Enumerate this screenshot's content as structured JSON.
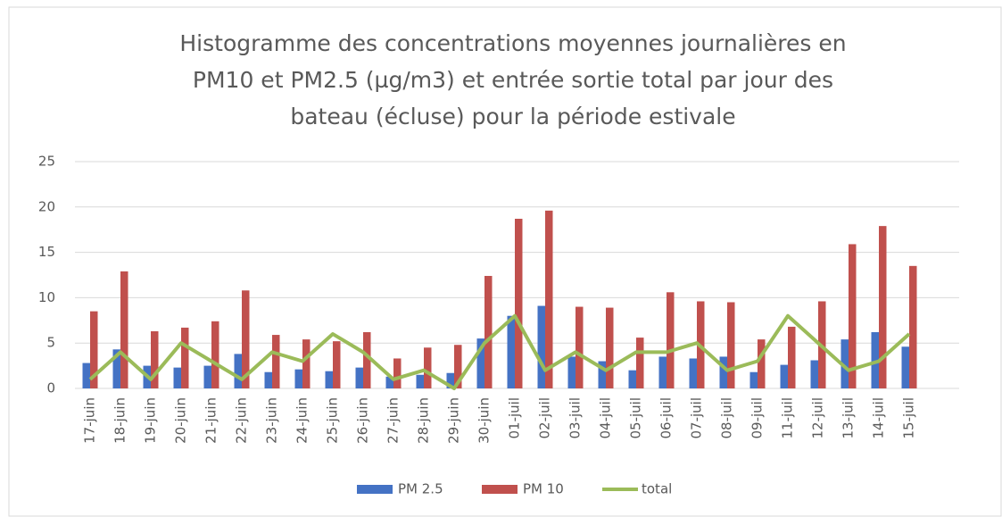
{
  "chart_data": {
    "type": "bar_line",
    "title": [
      "Histogramme des concentrations moyennes journalières en",
      "PM10 et PM2.5 (µg/m3) et entrée sortie total par jour des",
      "bateau (écluse) pour la période estivale"
    ],
    "categories": [
      "17-juin",
      "18-juin",
      "19-juin",
      "20-juin",
      "21-juin",
      "22-juin",
      "23-juin",
      "24-juin",
      "25-juin",
      "26-juin",
      "27-juin",
      "28-juin",
      "29-juin",
      "30-juin",
      "01-juil",
      "02-juil",
      "03-juil",
      "04-juil",
      "05-juil",
      "06-juil",
      "07-juil",
      "08-juil",
      "09-juil",
      "11-juil",
      "12-juil",
      "13-juil",
      "14-juil",
      "15-juil"
    ],
    "series": [
      {
        "name": "PM 2.5",
        "kind": "bar",
        "color": "#4472c4",
        "values": [
          2.8,
          4.3,
          2.5,
          2.3,
          2.5,
          3.8,
          1.8,
          2.1,
          1.9,
          2.3,
          1.3,
          1.5,
          1.7,
          5.5,
          8.0,
          9.1,
          3.5,
          3.0,
          2.0,
          3.5,
          3.3,
          3.5,
          1.8,
          2.6,
          3.1,
          5.4,
          6.2,
          4.6
        ]
      },
      {
        "name": "PM 10",
        "kind": "bar",
        "color": "#c0504d",
        "values": [
          8.5,
          12.9,
          6.3,
          6.7,
          7.4,
          10.8,
          5.9,
          5.4,
          5.2,
          6.2,
          3.3,
          4.5,
          4.8,
          12.4,
          18.7,
          19.6,
          9.0,
          8.9,
          5.6,
          10.6,
          9.6,
          9.5,
          5.4,
          6.8,
          9.6,
          15.9,
          17.9,
          13.5
        ]
      },
      {
        "name": "total",
        "kind": "line",
        "color": "#9bbb59",
        "values": [
          1,
          4,
          1,
          5,
          3,
          1,
          4,
          3,
          6,
          4,
          1,
          2,
          0,
          5,
          8,
          2,
          4,
          2,
          4,
          4,
          5,
          2,
          3,
          8,
          5,
          2,
          3,
          6
        ]
      }
    ],
    "ylim": [
      0,
      25
    ],
    "yticks": [
      0,
      5,
      10,
      15,
      20,
      25
    ],
    "grid": true,
    "legend": "bottom"
  }
}
